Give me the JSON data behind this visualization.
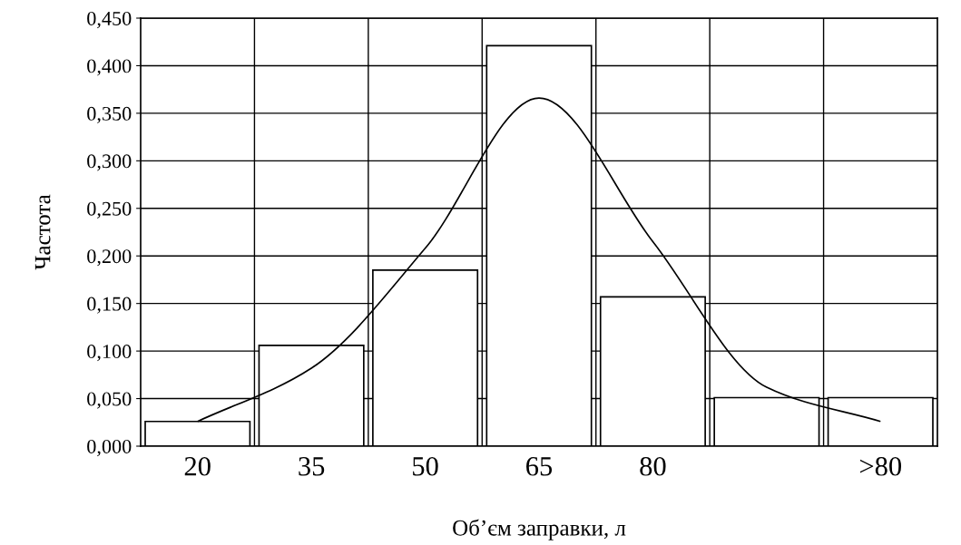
{
  "chart_data": {
    "type": "bar",
    "xlabel": "Об’єм заправки, л",
    "ylabel": "Частота",
    "categories": [
      "20",
      "35",
      "50",
      "65",
      "80",
      null,
      ">80"
    ],
    "series": [
      {
        "color": "#ffffff",
        "values": [
          0.026,
          0.106,
          0.185,
          0.421,
          0.157,
          0.051,
          0.051
        ]
      },
      {
        "type": "line",
        "color": "#000000",
        "values": [
          0.026,
          0.082,
          0.208,
          0.366,
          0.215,
          0.062,
          0.026
        ]
      }
    ],
    "ylim": [
      0,
      0.45
    ],
    "yticks": [
      {
        "value": 0,
        "label": "0,000"
      },
      {
        "value": 0.05,
        "label": "0,050"
      },
      {
        "value": 0.1,
        "label": "0,100"
      },
      {
        "value": 0.15,
        "label": "0,150"
      },
      {
        "value": 0.2,
        "label": "0,200"
      },
      {
        "value": 0.25,
        "label": "0,250"
      },
      {
        "value": 0.3,
        "label": "0,300"
      },
      {
        "value": 0.35,
        "label": "0,350"
      },
      {
        "value": 0.4,
        "label": "0,400"
      },
      {
        "value": 0.45,
        "label": "0,450"
      }
    ],
    "grid": true,
    "marker": "none",
    "line_style": "solid"
  }
}
